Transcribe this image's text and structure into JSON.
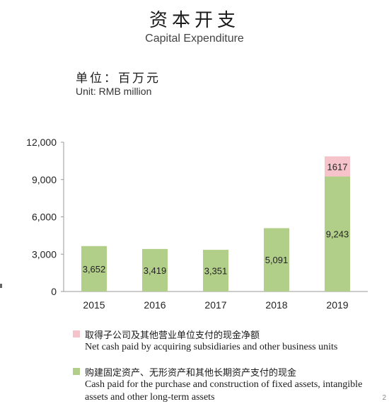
{
  "title_cn": "资本开支",
  "title_en": "Capital Expenditure",
  "unit_cn": "单位：百万元",
  "unit_en": "Unit: RMB million",
  "colors": {
    "green": "#b2cf8a",
    "pink": "#f6c3cb",
    "axis": "#999999"
  },
  "chart_data": {
    "type": "bar",
    "stacked": true,
    "categories": [
      "2015",
      "2016",
      "2017",
      "2018",
      "2019"
    ],
    "series": [
      {
        "name": "购建固定资产、无形资产和其他长期资产支付的现金 / Cash paid for the purchase and construction of fixed assets, intangible assets and other long-term assets",
        "values": [
          3652,
          3419,
          3351,
          5091,
          9243
        ],
        "labels": [
          "3,652",
          "3,419",
          "3,351",
          "5,091",
          "9,243"
        ],
        "color": "#b2cf8a"
      },
      {
        "name": "取得子公司及其他营业单位支付的现金净额 / Net cash paid by acquiring subsidiaries and other business units",
        "values": [
          null,
          null,
          null,
          null,
          1617
        ],
        "labels": [
          "",
          "",
          "",
          "",
          "1617"
        ],
        "color": "#f6c3cb"
      }
    ],
    "yticks": [
      "0",
      "3,000",
      "6,000",
      "9,000",
      "12,000"
    ],
    "ylim": [
      0,
      12000
    ],
    "grid": false
  },
  "legend": [
    {
      "cn": "取得子公司及其他营业单位支付的现金净额",
      "en": "Net cash paid by acquiring subsidiaries and other business units",
      "color": "#f6c3cb"
    },
    {
      "cn": "购建固定资产、无形资产和其他长期资产支付的现金",
      "en": "Cash paid for the purchase and construction of fixed assets, intangible assets and other long-term assets",
      "color": "#b2cf8a"
    }
  ],
  "page_number": "2"
}
